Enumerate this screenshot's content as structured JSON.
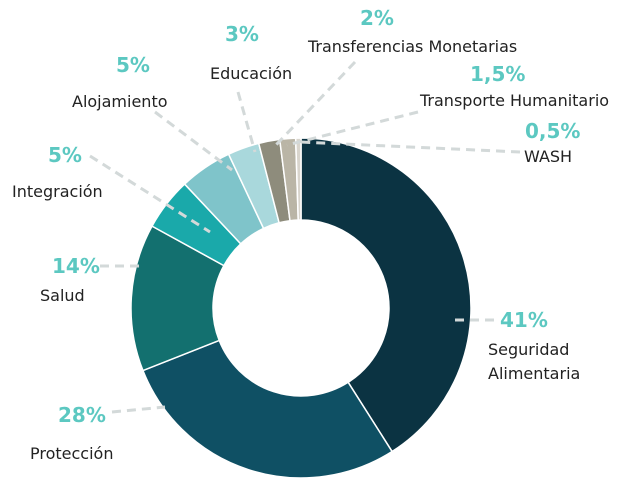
{
  "chart_data": {
    "type": "donut",
    "categories": [
      "Seguridad Alimentaria",
      "Protección",
      "Salud",
      "Integración",
      "Alojamiento",
      "Educación",
      "Transferencias Monetarias",
      "Transporte Humanitario",
      "WASH"
    ],
    "values": [
      41,
      28,
      14,
      5,
      5,
      3,
      2,
      1.5,
      0.5
    ],
    "value_labels": [
      "41%",
      "28%",
      "14%",
      "5%",
      "5%",
      "3%",
      "2%",
      "1,5%",
      "0,5%"
    ],
    "colors": [
      "#0b3342",
      "#0f5064",
      "#13706f",
      "#1aa9aa",
      "#7fc4ca",
      "#a9d8dc",
      "#8e8c7c",
      "#bab5a6",
      "#d9d5cd"
    ]
  }
}
